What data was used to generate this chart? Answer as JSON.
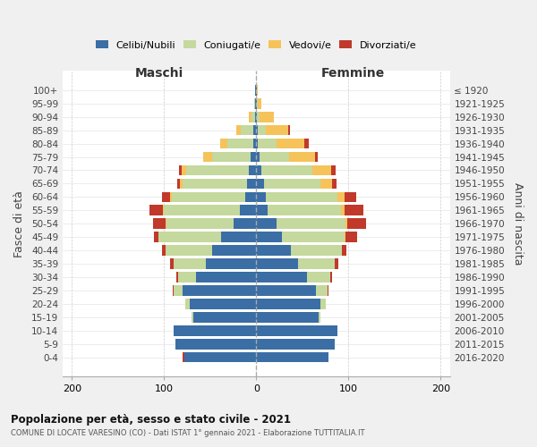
{
  "age_groups": [
    "0-4",
    "5-9",
    "10-14",
    "15-19",
    "20-24",
    "25-29",
    "30-34",
    "35-39",
    "40-44",
    "45-49",
    "50-54",
    "55-59",
    "60-64",
    "65-69",
    "70-74",
    "75-79",
    "80-84",
    "85-89",
    "90-94",
    "95-99",
    "100+"
  ],
  "birth_years": [
    "2016-2020",
    "2011-2015",
    "2006-2010",
    "2001-2005",
    "1996-2000",
    "1991-1995",
    "1986-1990",
    "1981-1985",
    "1976-1980",
    "1971-1975",
    "1966-1970",
    "1961-1965",
    "1956-1960",
    "1951-1955",
    "1946-1950",
    "1941-1945",
    "1936-1940",
    "1931-1935",
    "1926-1930",
    "1921-1925",
    "≤ 1920"
  ],
  "males": {
    "celibi": [
      78,
      88,
      90,
      68,
      72,
      80,
      65,
      55,
      48,
      38,
      25,
      18,
      12,
      10,
      8,
      6,
      3,
      3,
      1,
      1,
      1
    ],
    "coniugati": [
      0,
      0,
      0,
      2,
      5,
      10,
      20,
      35,
      50,
      68,
      72,
      82,
      80,
      70,
      68,
      42,
      28,
      14,
      4,
      1,
      0
    ],
    "vedovi": [
      0,
      0,
      0,
      0,
      0,
      0,
      0,
      0,
      0,
      0,
      1,
      1,
      2,
      3,
      5,
      10,
      8,
      5,
      3,
      0,
      0
    ],
    "divorziati": [
      2,
      0,
      0,
      0,
      0,
      1,
      2,
      4,
      4,
      5,
      14,
      15,
      8,
      3,
      3,
      0,
      0,
      0,
      0,
      0,
      0
    ]
  },
  "females": {
    "nubili": [
      78,
      85,
      88,
      68,
      70,
      65,
      55,
      45,
      38,
      28,
      22,
      12,
      10,
      8,
      6,
      4,
      2,
      2,
      1,
      1,
      1
    ],
    "coniugate": [
      0,
      0,
      0,
      2,
      5,
      12,
      25,
      40,
      55,
      68,
      75,
      80,
      78,
      62,
      55,
      32,
      20,
      8,
      3,
      1,
      0
    ],
    "vedove": [
      0,
      0,
      0,
      0,
      0,
      0,
      0,
      0,
      0,
      1,
      2,
      4,
      8,
      12,
      20,
      28,
      30,
      25,
      15,
      4,
      1
    ],
    "divorziate": [
      0,
      0,
      0,
      0,
      0,
      1,
      2,
      4,
      5,
      12,
      20,
      20,
      12,
      5,
      5,
      3,
      5,
      2,
      0,
      0,
      0
    ]
  },
  "colors": {
    "celibi": "#3a6ea5",
    "coniugati": "#c5d89d",
    "vedovi": "#f5c35a",
    "divorziati": "#c0392b"
  },
  "xlim": 210,
  "title": "Popolazione per età, sesso e stato civile - 2021",
  "subtitle": "COMUNE DI LOCATE VARESINO (CO) - Dati ISTAT 1° gennaio 2021 - Elaborazione TUTTITALIA.IT",
  "ylabel": "Fasce di età",
  "ylabel_right": "Anni di nascita",
  "legend_labels": [
    "Celibi/Nubili",
    "Coniugati/e",
    "Vedovi/e",
    "Divorziati/e"
  ],
  "maschi_label": "Maschi",
  "femmine_label": "Femmine",
  "bg_color": "#f0f0f0",
  "plot_bg": "#ffffff"
}
